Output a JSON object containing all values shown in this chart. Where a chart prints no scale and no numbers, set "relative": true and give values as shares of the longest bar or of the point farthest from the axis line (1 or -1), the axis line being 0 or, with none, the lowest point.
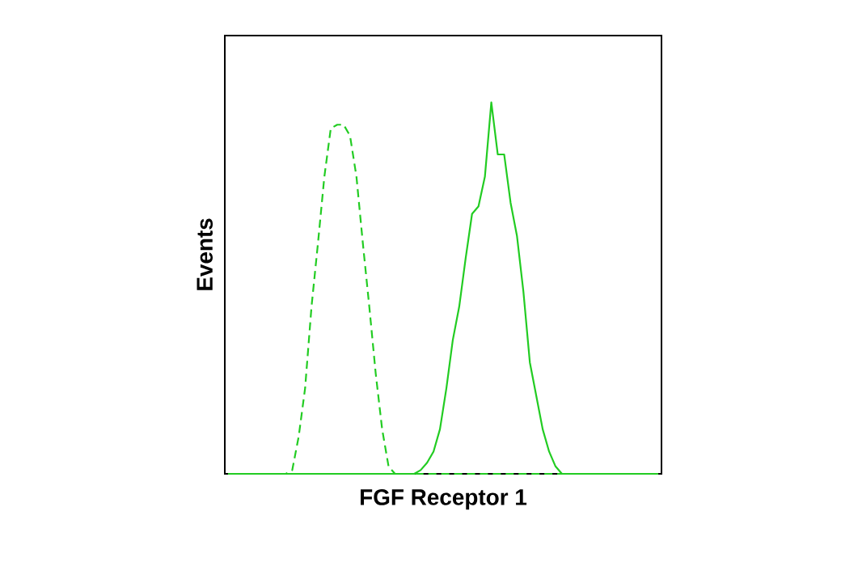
{
  "chart_data": {
    "type": "line",
    "relative": true,
    "xlabel": "FGF Receptor 1",
    "ylabel": "Events",
    "categories": [
      null,
      null,
      null,
      null,
      null,
      null,
      null,
      null,
      null,
      null,
      null,
      null,
      null,
      null,
      null,
      null,
      null,
      null,
      null,
      null,
      null,
      null,
      null,
      null,
      null,
      null,
      null,
      null,
      null,
      null,
      null,
      null,
      null,
      null,
      null,
      null,
      null,
      null,
      null,
      null,
      null,
      null,
      null,
      null,
      null,
      null,
      null,
      null,
      null,
      null,
      null,
      null,
      null,
      null,
      null,
      null,
      null,
      null,
      null,
      null,
      null,
      null,
      null,
      null,
      null,
      null,
      null,
      null
    ],
    "series": [
      {
        "color": "#22cc22",
        "line_style": "dashed",
        "values": [
          0,
          0,
          0,
          0,
          0,
          0,
          0,
          0,
          0,
          0,
          0.01,
          0.1,
          0.23,
          0.45,
          0.62,
          0.8,
          0.93,
          0.94,
          0.94,
          0.91,
          0.8,
          0.62,
          0.45,
          0.27,
          0.12,
          0.02,
          0,
          0,
          0,
          0,
          0,
          0,
          0,
          0,
          0,
          0,
          0,
          0,
          0,
          0,
          0,
          0,
          0,
          0,
          0,
          0,
          0,
          0,
          0,
          0,
          0,
          0,
          0,
          0,
          0,
          0,
          0,
          0,
          0,
          0,
          0,
          0,
          0,
          0,
          0,
          0,
          0,
          0
        ]
      },
      {
        "color": "#22cc22",
        "line_style": "solid",
        "values": [
          0,
          0,
          0,
          0,
          0,
          0,
          0,
          0,
          0,
          0,
          0,
          0,
          0,
          0,
          0,
          0,
          0,
          0,
          0,
          0,
          0,
          0,
          0,
          0,
          0,
          0,
          0,
          0,
          0,
          0,
          0.01,
          0.03,
          0.06,
          0.12,
          0.23,
          0.36,
          0.45,
          0.58,
          0.7,
          0.72,
          0.8,
          1.0,
          0.86,
          0.86,
          0.73,
          0.64,
          0.49,
          0.3,
          0.21,
          0.12,
          0.06,
          0.02,
          0,
          0,
          0,
          0,
          0,
          0,
          0,
          0,
          0,
          0,
          0,
          0,
          0,
          0,
          0,
          0
        ]
      }
    ]
  }
}
